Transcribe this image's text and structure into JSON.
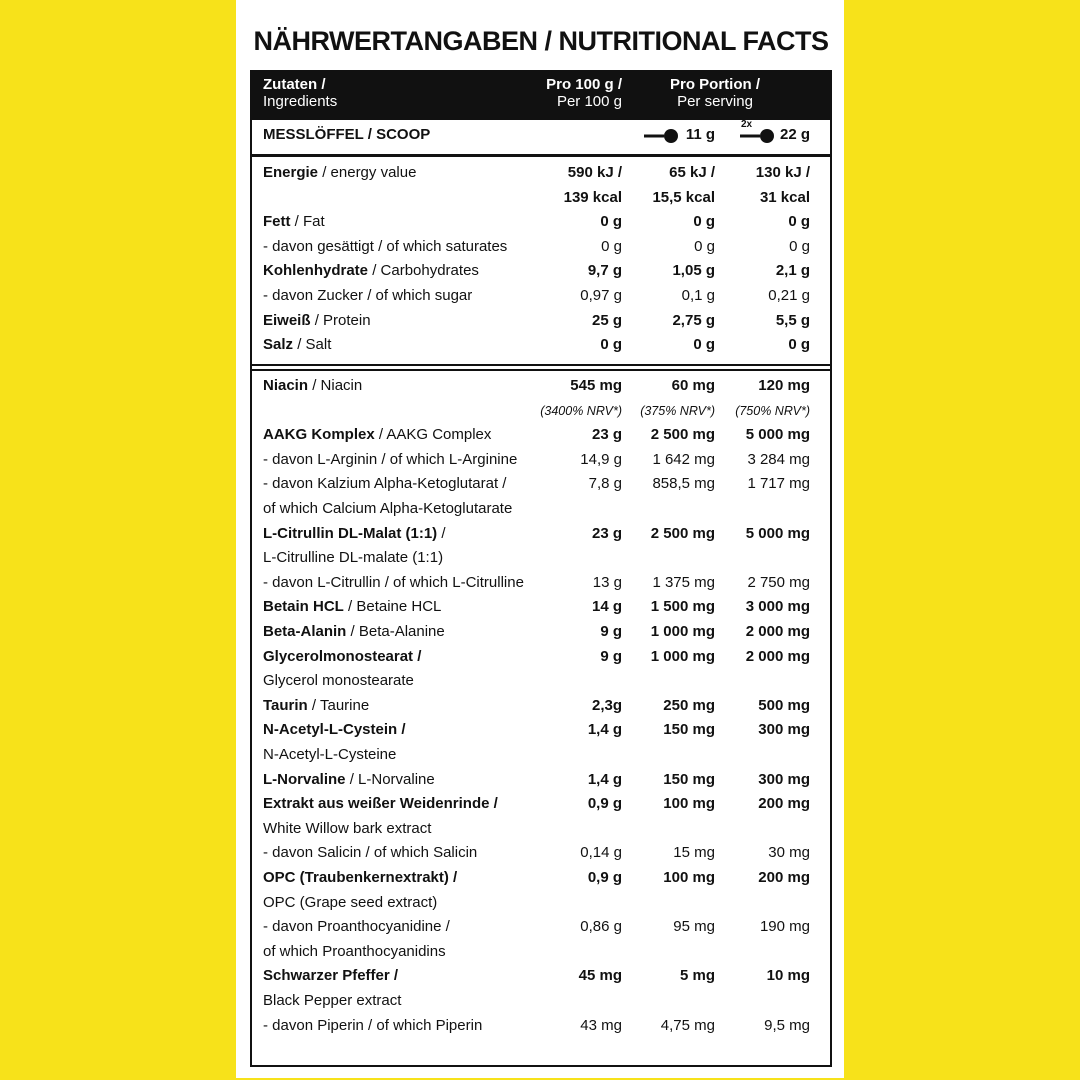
{
  "title": "NÄHRWERTANGABEN / NUTRITIONAL FACTS",
  "header": {
    "ingredients": [
      "Zutaten /",
      "Ingredients"
    ],
    "per100": [
      "Pro 100 g /",
      "Per 100 g"
    ],
    "portion": [
      "Pro Portion /",
      "Per serving"
    ]
  },
  "scoop": {
    "label": "MESSLÖFFEL / SCOOP",
    "single": "11 g",
    "double_marker": "2x",
    "double": "22 g"
  },
  "sections": [
    [
      {
        "b": "Energie",
        "t": "/ energy value",
        "v": [
          "590 kJ /",
          "65 kJ /",
          "130 kJ /"
        ],
        "v2": [
          "139 kcal",
          "15,5 kcal",
          "31 kcal"
        ]
      },
      {
        "b": "Fett",
        "t": "/ Fat",
        "v": [
          "0 g",
          "0 g",
          "0 g"
        ]
      },
      {
        "t": "- davon gesättigt / of which saturates",
        "v": [
          "0 g",
          "0 g",
          "0 g"
        ]
      },
      {
        "b": "Kohlenhydrate",
        "t": "/ Carbohydrates",
        "v": [
          "9,7 g",
          "1,05 g",
          "2,1 g"
        ]
      },
      {
        "t": "- davon Zucker / of which sugar",
        "v": [
          "0,97 g",
          "0,1 g",
          "0,21 g"
        ]
      },
      {
        "b": "Eiweiß",
        "t": "/ Protein",
        "v": [
          "25 g",
          "2,75 g",
          "5,5 g"
        ]
      },
      {
        "b": "Salz",
        "t": "/ Salt",
        "v": [
          "0 g",
          "0 g",
          "0 g"
        ]
      }
    ],
    [
      {
        "b": "Niacin",
        "t": "/ Niacin",
        "v": [
          "545 mg",
          "60 mg",
          "120 mg"
        ],
        "nrv": [
          "(3400% NRV*)",
          "(375% NRV*)",
          "(750% NRV*)"
        ]
      },
      {
        "b": "AAKG Komplex",
        "t": "/ AAKG Complex",
        "v": [
          "23 g",
          "2 500 mg",
          "5 000 mg"
        ]
      },
      {
        "t": "- davon L-Arginin / of which L-Arginine",
        "v": [
          "14,9 g",
          "1 642 mg",
          "3 284 mg"
        ]
      },
      {
        "t": "- davon Kalzium Alpha-Ketoglutarat /",
        "v": [
          "7,8 g",
          "858,5 mg",
          "1 717 mg"
        ]
      },
      {
        "t": "of which Calcium Alpha-Ketoglutarate"
      },
      {
        "b": "L-Citrullin DL-Malat (1:1)",
        "t": "/",
        "v": [
          "23 g",
          "2 500 mg",
          "5 000 mg"
        ]
      },
      {
        "t": "L-Citrulline DL-malate (1:1)"
      },
      {
        "t": "- davon L-Citrullin / of which L-Citrulline",
        "v": [
          "13 g",
          "1 375 mg",
          "2 750 mg"
        ]
      },
      {
        "b": "Betain HCL",
        "t": "/ Betaine HCL",
        "v": [
          "14 g",
          "1 500 mg",
          "3 000 mg"
        ]
      },
      {
        "b": "Beta-Alanin",
        "t": "/ Beta-Alanine",
        "v": [
          "9 g",
          "1 000 mg",
          "2 000 mg"
        ]
      },
      {
        "b": "Glycerolmonostearat /",
        "v": [
          "9 g",
          "1 000 mg",
          "2 000 mg"
        ]
      },
      {
        "t": "Glycerol monostearate"
      },
      {
        "b": "Taurin",
        "t": "/ Taurine",
        "v": [
          "2,3g",
          "250 mg",
          "500 mg"
        ]
      },
      {
        "b": "N-Acetyl-L-Cystein /",
        "v": [
          "1,4 g",
          "150 mg",
          "300 mg"
        ]
      },
      {
        "t": "N-Acetyl-L-Cysteine"
      },
      {
        "b": "L-Norvaline",
        "t": "/ L-Norvaline",
        "v": [
          "1,4 g",
          "150 mg",
          "300 mg"
        ]
      },
      {
        "b": "Extrakt aus weißer Weidenrinde /",
        "v": [
          "0,9 g",
          "100 mg",
          "200 mg"
        ]
      },
      {
        "t": "White Willow bark extract"
      },
      {
        "t": "- davon Salicin / of which Salicin",
        "v": [
          "0,14 g",
          "15 mg",
          "30 mg"
        ]
      },
      {
        "b": "OPC (Traubenkernextrakt) /",
        "v": [
          "0,9 g",
          "100 mg",
          "200 mg"
        ]
      },
      {
        "t": "OPC (Grape seed extract)"
      },
      {
        "t": "- davon Proanthocyanidine /",
        "v": [
          "0,86 g",
          "95 mg",
          "190 mg"
        ]
      },
      {
        "t": "of which Proanthocyanidins"
      },
      {
        "b": "Schwarzer Pfeffer /",
        "v": [
          "45 mg",
          "5 mg",
          "10 mg"
        ]
      },
      {
        "t": "Black Pepper extract"
      },
      {
        "t": "- davon Piperin / of which Piperin",
        "v": [
          "43 mg",
          "4,75 mg",
          "9,5 mg"
        ]
      }
    ]
  ]
}
